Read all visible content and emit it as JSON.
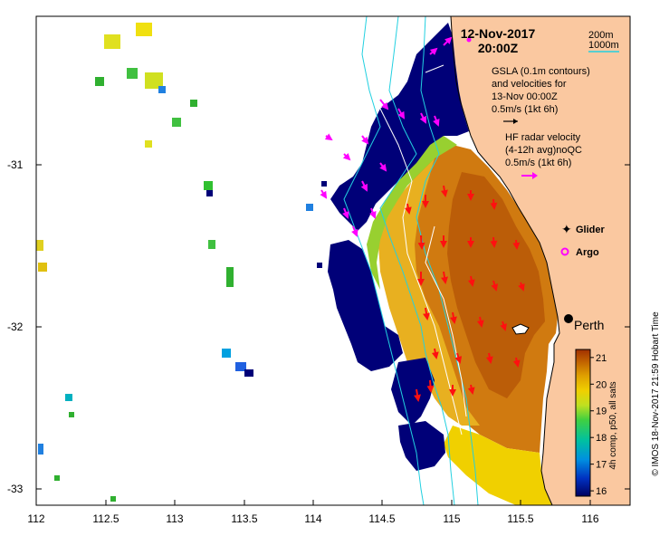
{
  "map": {
    "date": "12-Nov-2017",
    "time": "20:00Z",
    "depth_legend": {
      "shallow": "200m",
      "deep": "1000m",
      "line_color": "#22d0e0"
    },
    "gsla": {
      "line1": "GSLA (0.1m contours)",
      "line2": "and velocities for",
      "line3": "13-Nov 00:00Z",
      "scale": "0.5m/s (1kt 6h)"
    },
    "hf_radar": {
      "line1": "HF radar velocity",
      "line2": "(4-12h avg)noQC",
      "scale": "0.5m/s (1kt 6h)",
      "arrow_color": "#ff00ff"
    },
    "legend": {
      "glider": "Glider",
      "argo": "Argo",
      "glider_color": "#ff00ff",
      "argo_color": "#ff00ff"
    },
    "city": "Perth",
    "land_color": "#fac8a0",
    "x_ticks": [
      "112",
      "112.5",
      "113",
      "113.5",
      "114",
      "114.5",
      "115",
      "115.5",
      "116"
    ],
    "y_ticks": [
      "-31",
      "-32",
      "-33"
    ],
    "colorbar": {
      "label": "4h comp, p50, all sats",
      "ticks": [
        "16",
        "17",
        "18",
        "19",
        "20",
        "21"
      ],
      "min": 15.8,
      "max": 21.3
    },
    "credit": "© IMOS 18-Nov-2017 21:59 Hobart Time"
  }
}
